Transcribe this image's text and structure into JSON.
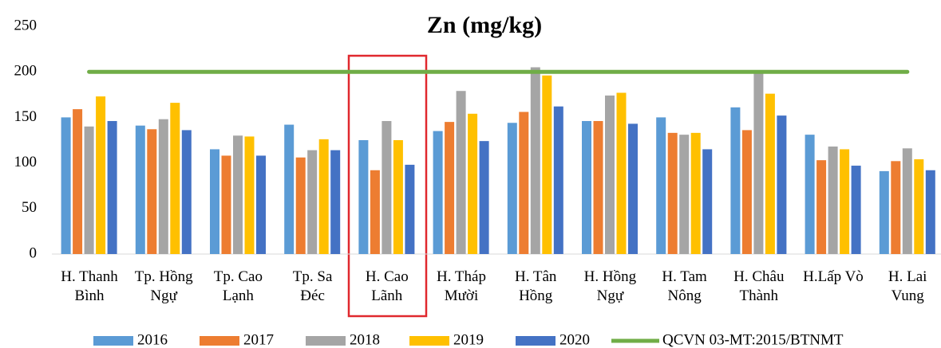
{
  "chart_data": {
    "type": "bar",
    "title": "Zn (mg/kg)",
    "categories": [
      "H. Thanh\nBình",
      "Tp. Hồng\nNgự",
      "Tp. Cao\nLạnh",
      "Tp. Sa\nĐéc",
      "H. Cao\nLãnh",
      "H. Tháp\nMười",
      "H. Tân\nHồng",
      "H. Hồng\nNgự",
      "H. Tam\nNông",
      "H. Châu\nThành",
      "H.Lấp Vò",
      "H. Lai\nVung"
    ],
    "series": [
      {
        "name": "2016",
        "color": "#5b9bd5",
        "values": [
          150,
          141,
          115,
          142,
          125,
          135,
          144,
          146,
          150,
          161,
          131,
          91
        ]
      },
      {
        "name": "2017",
        "color": "#ed7d31",
        "values": [
          159,
          137,
          108,
          106,
          92,
          145,
          156,
          146,
          133,
          136,
          103,
          102
        ]
      },
      {
        "name": "2018",
        "color": "#a5a5a5",
        "values": [
          140,
          148,
          130,
          114,
          146,
          179,
          205,
          174,
          131,
          200,
          118,
          116
        ]
      },
      {
        "name": "2019",
        "color": "#ffc000",
        "values": [
          173,
          166,
          129,
          126,
          125,
          154,
          196,
          177,
          133,
          176,
          115,
          104
        ]
      },
      {
        "name": "2020",
        "color": "#4472c4",
        "values": [
          146,
          136,
          108,
          114,
          98,
          124,
          162,
          143,
          115,
          152,
          97,
          92
        ]
      },
      {
        "name": "QCVN 03-MT:2015/BTNMT",
        "type": "line",
        "color": "#70ad47",
        "values": [
          200,
          200,
          200,
          200,
          200,
          200,
          200,
          200,
          200,
          200,
          200,
          200
        ]
      }
    ],
    "ylim": [
      0,
      250
    ],
    "yticks": [
      0,
      50,
      100,
      150,
      200,
      250
    ],
    "grid": false
  }
}
